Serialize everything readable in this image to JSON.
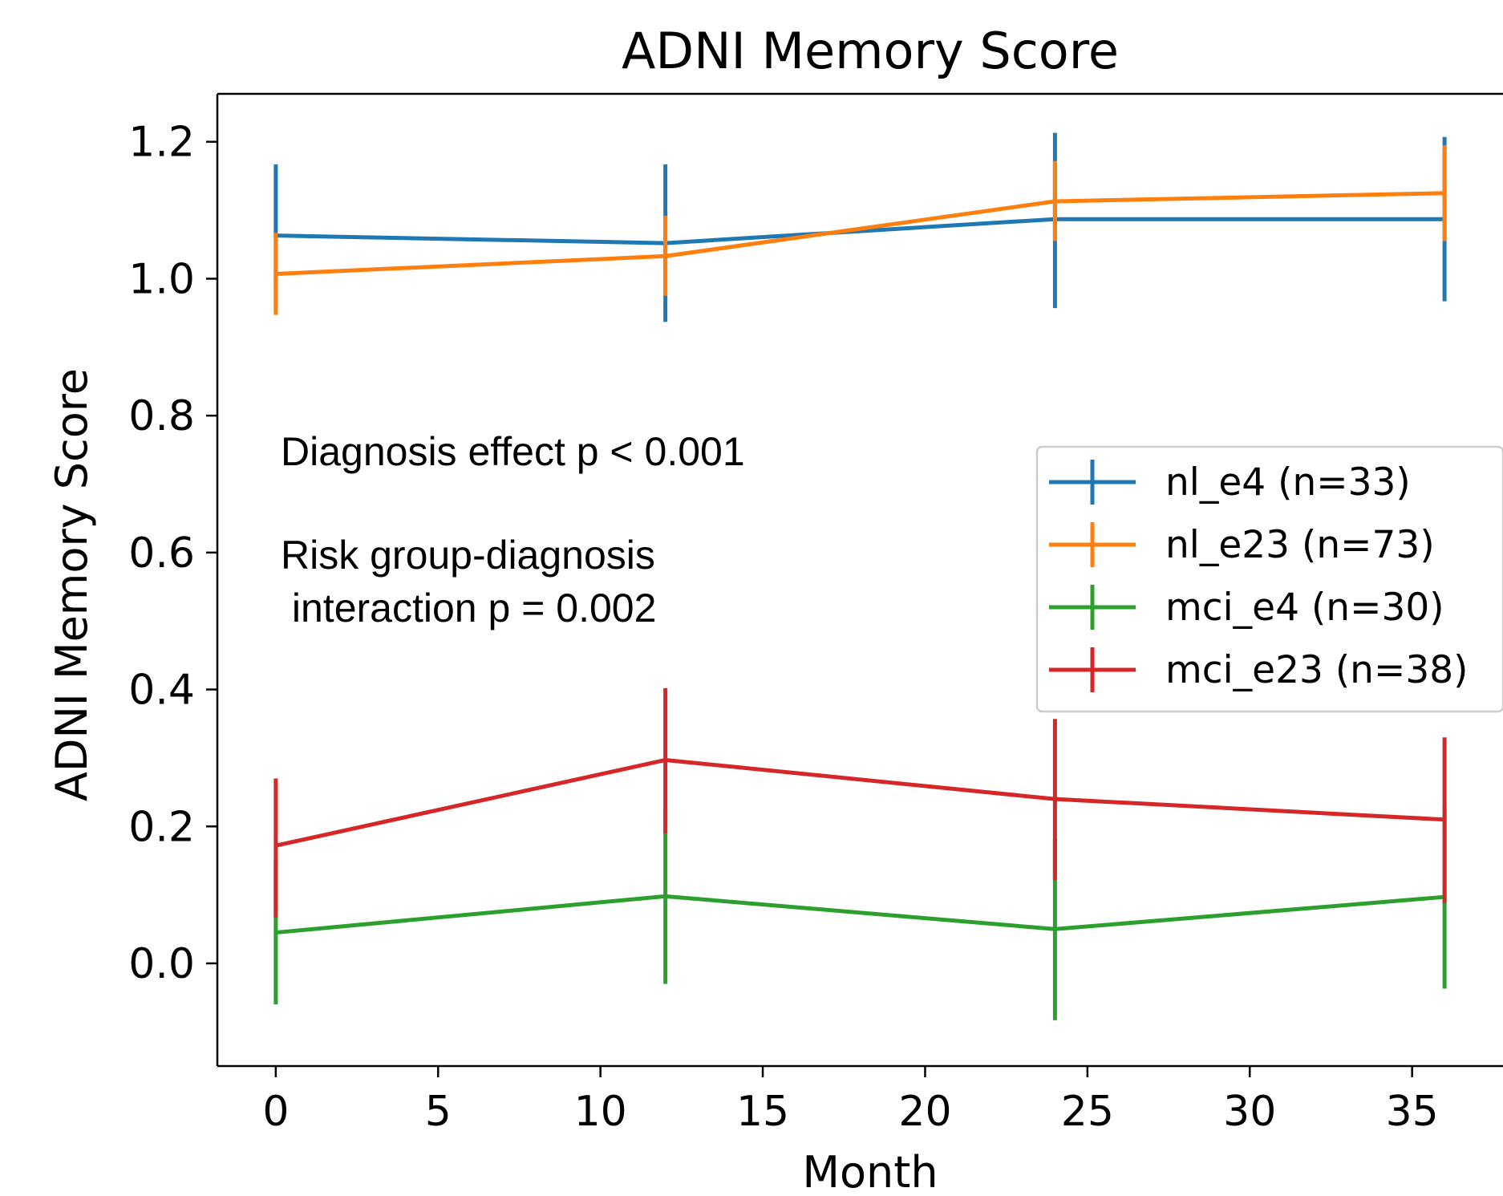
{
  "chart_data": {
    "type": "line",
    "title": "ADNI Memory Score",
    "xlabel": "Month",
    "ylabel": "ADNI Memory Score",
    "xlim": [
      -1.8,
      37.8
    ],
    "ylim": [
      -0.15,
      1.27
    ],
    "xticks": [
      0,
      5,
      10,
      15,
      20,
      25,
      30,
      35
    ],
    "yticks": [
      0.0,
      0.2,
      0.4,
      0.6,
      0.8,
      1.0,
      1.2
    ],
    "ytick_labels": [
      "0.0",
      "0.2",
      "0.4",
      "0.6",
      "0.8",
      "1.0",
      "1.2"
    ],
    "grid": false,
    "legend_position": "right",
    "x": [
      0,
      12,
      24,
      36
    ],
    "series": [
      {
        "name": "nl_e4 (n=33)",
        "color": "#1f77b4",
        "values": [
          1.063,
          1.052,
          1.087,
          1.087
        ],
        "err_low": [
          0.955,
          0.937,
          0.957,
          0.967
        ],
        "err_high": [
          1.167,
          1.167,
          1.213,
          1.207
        ]
      },
      {
        "name": "nl_e23 (n=73)",
        "color": "#ff7f0e",
        "values": [
          1.007,
          1.033,
          1.113,
          1.125
        ],
        "err_low": [
          0.947,
          0.975,
          1.055,
          1.055
        ],
        "err_high": [
          1.067,
          1.092,
          1.172,
          1.195
        ]
      },
      {
        "name": "mci_e4 (n=30)",
        "color": "#2ca02c",
        "values": [
          0.045,
          0.098,
          0.05,
          0.097
        ],
        "err_low": [
          -0.06,
          -0.03,
          -0.083,
          -0.037
        ],
        "err_high": [
          0.152,
          0.227,
          0.182,
          0.232
        ]
      },
      {
        "name": "mci_e23 (n=38)",
        "color": "#d62728",
        "values": [
          0.172,
          0.297,
          0.24,
          0.21
        ],
        "err_low": [
          0.067,
          0.19,
          0.122,
          0.088
        ],
        "err_high": [
          0.27,
          0.402,
          0.357,
          0.33
        ]
      }
    ],
    "annotations": [
      "Diagnosis effect p < 0.001",
      "Risk group-diagnosis",
      " interaction p = 0.002"
    ]
  }
}
